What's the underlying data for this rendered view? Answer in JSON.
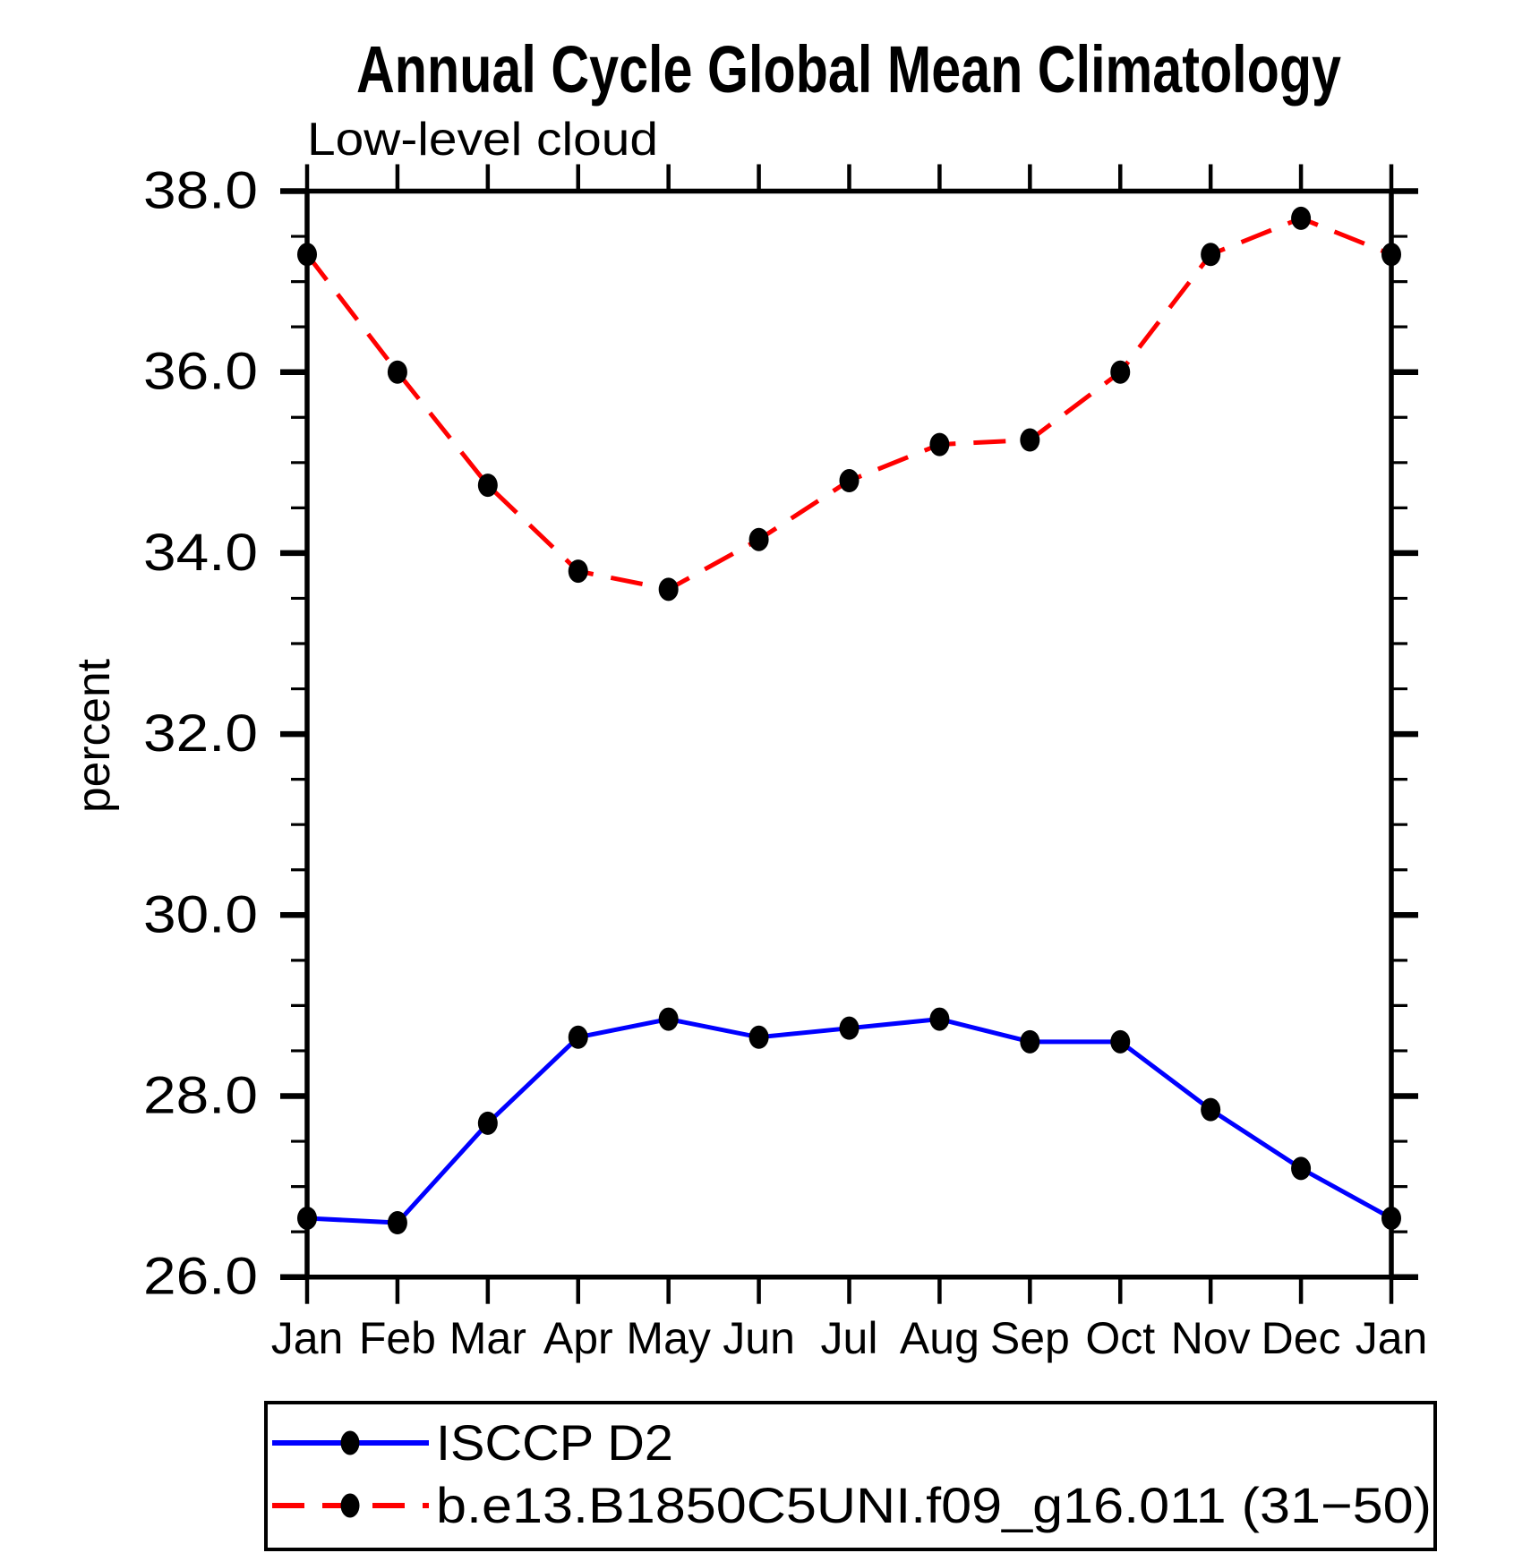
{
  "page": {
    "background": "#ffffff"
  },
  "header": {
    "title": "Annual Cycle Global Mean Climatology",
    "subtitle": "Low-level cloud"
  },
  "axes": {
    "ylabel": "percent",
    "ytick_labels": [
      "26.0",
      "28.0",
      "30.0",
      "32.0",
      "34.0",
      "36.0",
      "38.0"
    ],
    "xtick_labels": [
      "Jan",
      "Feb",
      "Mar",
      "Apr",
      "May",
      "Jun",
      "Jul",
      "Aug",
      "Sep",
      "Oct",
      "Nov",
      "Dec",
      "Jan"
    ]
  },
  "legend": {
    "entries": [
      {
        "label": "ISCCP D2",
        "line_color": "#0000ff",
        "line_style": "solid",
        "marker": "filled-circle",
        "marker_color": "#000000"
      },
      {
        "label": "b.e13.B1850C5UNI.f09_g16.011 (31−50)",
        "line_color": "#ff0000",
        "line_style": "dashed",
        "marker": "filled-circle",
        "marker_color": "#000000"
      }
    ]
  },
  "chart_data": {
    "type": "line",
    "title": "Annual Cycle Global Mean Climatology",
    "subtitle": "Low-level cloud",
    "xlabel": "",
    "ylabel": "percent",
    "x_categories": [
      "Jan",
      "Feb",
      "Mar",
      "Apr",
      "May",
      "Jun",
      "Jul",
      "Aug",
      "Sep",
      "Oct",
      "Nov",
      "Dec",
      "Jan"
    ],
    "ylim": [
      26.0,
      38.0
    ],
    "ytick_major": [
      26.0,
      28.0,
      30.0,
      32.0,
      34.0,
      36.0,
      38.0
    ],
    "ytick_minor_step": 0.5,
    "grid": false,
    "legend_position": "boxed-below-left",
    "axis_color": "#000000",
    "series": [
      {
        "name": "ISCCP D2",
        "color": "#0000ff",
        "style": "solid",
        "marker": "circle",
        "marker_color": "#000000",
        "values": [
          26.65,
          26.6,
          27.7,
          28.65,
          28.85,
          28.65,
          28.75,
          28.85,
          28.6,
          28.6,
          27.85,
          27.2,
          26.65
        ]
      },
      {
        "name": "b.e13.B1850C5UNI.f09_g16.011 (31−50)",
        "color": "#ff0000",
        "style": "dashed",
        "marker": "circle",
        "marker_color": "#000000",
        "values": [
          37.3,
          36.0,
          34.75,
          33.8,
          33.6,
          34.15,
          34.8,
          35.2,
          35.25,
          36.0,
          37.3,
          37.7,
          37.3
        ]
      }
    ]
  }
}
